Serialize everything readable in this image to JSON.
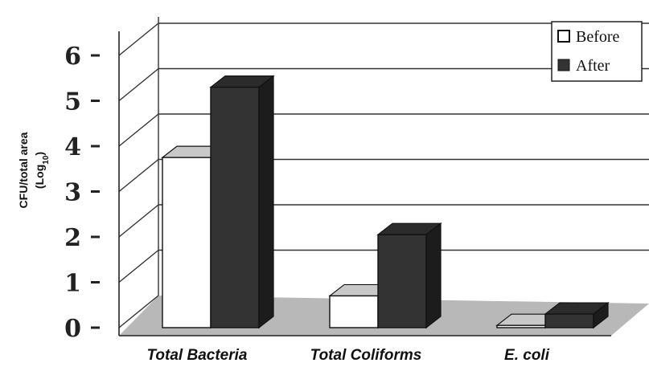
{
  "chart_data": {
    "type": "bar",
    "categories": [
      "Total Bacteria",
      "Total Coliforms",
      "E. coli"
    ],
    "series": [
      {
        "name": "Before",
        "values": [
          3.75,
          0.7,
          0.05
        ],
        "color": "#ffffff"
      },
      {
        "name": "After",
        "values": [
          5.3,
          2.05,
          0.3
        ],
        "color": "#333333"
      }
    ],
    "ylabel_line1": "CFU/total area",
    "ylabel_line2_base": "(Log",
    "ylabel_line2_sub": "10",
    "ylabel_line2_end": ")",
    "ylim": [
      0,
      6
    ],
    "yticks": [
      "0",
      "1",
      "2",
      "3",
      "4",
      "5",
      "6"
    ],
    "legend_position": "top-right",
    "grid": true,
    "style": "3d"
  }
}
